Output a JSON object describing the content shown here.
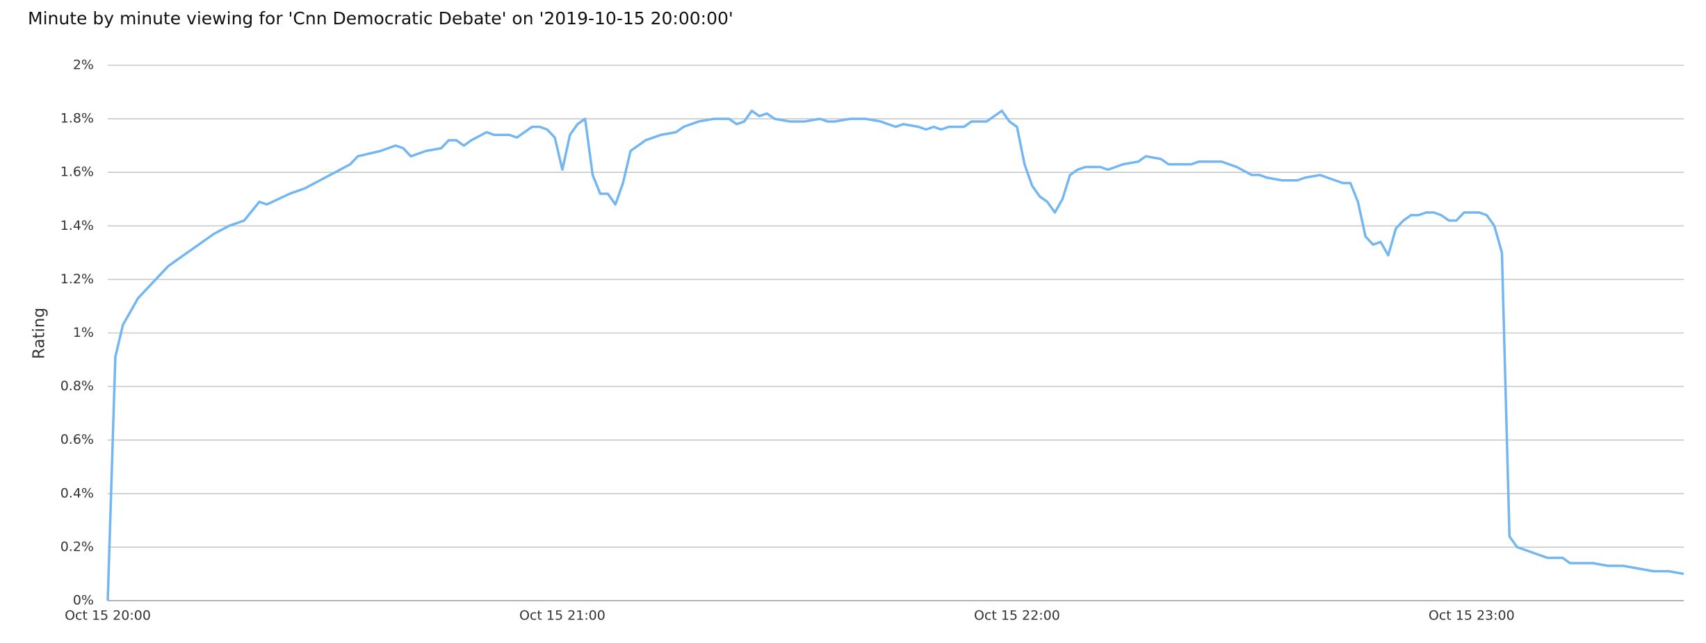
{
  "chart_data": {
    "type": "line",
    "title": "Minute by minute viewing for 'Cnn Democratic Debate' on '2019-10-15 20:00:00'",
    "y_label": "Rating",
    "color": "#72b6f2",
    "grid": true,
    "x": [
      "Oct 15 20:00",
      "Oct 15 20:01",
      "Oct 15 20:02",
      "Oct 15 20:03",
      "Oct 15 20:04",
      "Oct 15 20:06",
      "Oct 15 20:08",
      "Oct 15 20:10",
      "Oct 15 20:12",
      "Oct 15 20:14",
      "Oct 15 20:16",
      "Oct 15 20:18",
      "Oct 15 20:20",
      "Oct 15 20:21",
      "Oct 15 20:24",
      "Oct 15 20:26",
      "Oct 15 20:28",
      "Oct 15 20:30",
      "Oct 15 20:32",
      "Oct 15 20:33",
      "Oct 15 20:36",
      "Oct 15 20:38",
      "Oct 15 20:39",
      "Oct 15 20:40",
      "Oct 15 20:42",
      "Oct 15 20:44",
      "Oct 15 20:45",
      "Oct 15 20:46",
      "Oct 15 20:47",
      "Oct 15 20:48",
      "Oct 15 20:50",
      "Oct 15 20:51",
      "Oct 15 20:53",
      "Oct 15 20:54",
      "Oct 15 20:56",
      "Oct 15 20:57",
      "Oct 15 20:58",
      "Oct 15 20:59",
      "Oct 15 21:00",
      "Oct 15 21:01",
      "Oct 15 21:02",
      "Oct 15 21:03",
      "Oct 15 21:04",
      "Oct 15 21:05",
      "Oct 15 21:06",
      "Oct 15 21:07",
      "Oct 15 21:08",
      "Oct 15 21:09",
      "Oct 15 21:11",
      "Oct 15 21:13",
      "Oct 15 21:15",
      "Oct 15 21:16",
      "Oct 15 21:18",
      "Oct 15 21:20",
      "Oct 15 21:22",
      "Oct 15 21:23",
      "Oct 15 21:24",
      "Oct 15 21:25",
      "Oct 15 21:26",
      "Oct 15 21:27",
      "Oct 15 21:28",
      "Oct 15 21:30",
      "Oct 15 21:32",
      "Oct 15 21:34",
      "Oct 15 21:35",
      "Oct 15 21:36",
      "Oct 15 21:38",
      "Oct 15 21:40",
      "Oct 15 21:42",
      "Oct 15 21:44",
      "Oct 15 21:45",
      "Oct 15 21:47",
      "Oct 15 21:48",
      "Oct 15 21:49",
      "Oct 15 21:50",
      "Oct 15 21:51",
      "Oct 15 21:53",
      "Oct 15 21:54",
      "Oct 15 21:56",
      "Oct 15 21:57",
      "Oct 15 21:58",
      "Oct 15 21:59",
      "Oct 15 22:00",
      "Oct 15 22:01",
      "Oct 15 22:02",
      "Oct 15 22:03",
      "Oct 15 22:04",
      "Oct 15 22:05",
      "Oct 15 22:06",
      "Oct 15 22:07",
      "Oct 15 22:08",
      "Oct 15 22:09",
      "Oct 15 22:11",
      "Oct 15 22:12",
      "Oct 15 22:14",
      "Oct 15 22:16",
      "Oct 15 22:17",
      "Oct 15 22:19",
      "Oct 15 22:20",
      "Oct 15 22:23",
      "Oct 15 22:24",
      "Oct 15 22:26",
      "Oct 15 22:27",
      "Oct 15 22:29",
      "Oct 15 22:31",
      "Oct 15 22:32",
      "Oct 15 22:33",
      "Oct 15 22:35",
      "Oct 15 22:37",
      "Oct 15 22:38",
      "Oct 15 22:40",
      "Oct 15 22:42",
      "Oct 15 22:43",
      "Oct 15 22:44",
      "Oct 15 22:45",
      "Oct 15 22:46",
      "Oct 15 22:47",
      "Oct 15 22:48",
      "Oct 15 22:49",
      "Oct 15 22:50",
      "Oct 15 22:51",
      "Oct 15 22:52",
      "Oct 15 22:53",
      "Oct 15 22:54",
      "Oct 15 22:55",
      "Oct 15 22:56",
      "Oct 15 22:57",
      "Oct 15 22:58",
      "Oct 15 22:59",
      "Oct 15 23:01",
      "Oct 15 23:02",
      "Oct 15 23:03",
      "Oct 15 23:04",
      "Oct 15 23:05",
      "Oct 15 23:06",
      "Oct 15 23:07",
      "Oct 15 23:08",
      "Oct 15 23:09",
      "Oct 15 23:10",
      "Oct 15 23:12",
      "Oct 15 23:13",
      "Oct 15 23:15",
      "Oct 15 23:16",
      "Oct 15 23:18",
      "Oct 15 23:20",
      "Oct 15 23:22",
      "Oct 15 23:24",
      "Oct 15 23:26",
      "Oct 15 23:28"
    ],
    "values": [
      0,
      0.91,
      1.03,
      1.08,
      1.13,
      1.19,
      1.25,
      1.29,
      1.33,
      1.37,
      1.4,
      1.42,
      1.49,
      1.48,
      1.52,
      1.54,
      1.57,
      1.6,
      1.63,
      1.66,
      1.68,
      1.7,
      1.69,
      1.66,
      1.68,
      1.69,
      1.72,
      1.72,
      1.7,
      1.72,
      1.75,
      1.74,
      1.74,
      1.73,
      1.77,
      1.77,
      1.76,
      1.73,
      1.61,
      1.74,
      1.78,
      1.8,
      1.59,
      1.52,
      1.52,
      1.48,
      1.56,
      1.68,
      1.72,
      1.74,
      1.75,
      1.77,
      1.79,
      1.8,
      1.8,
      1.78,
      1.79,
      1.83,
      1.81,
      1.82,
      1.8,
      1.79,
      1.79,
      1.8,
      1.79,
      1.79,
      1.8,
      1.8,
      1.79,
      1.77,
      1.78,
      1.77,
      1.76,
      1.77,
      1.76,
      1.77,
      1.77,
      1.79,
      1.79,
      1.81,
      1.83,
      1.79,
      1.77,
      1.63,
      1.55,
      1.51,
      1.49,
      1.45,
      1.5,
      1.59,
      1.61,
      1.62,
      1.62,
      1.61,
      1.63,
      1.64,
      1.66,
      1.65,
      1.63,
      1.63,
      1.64,
      1.64,
      1.64,
      1.62,
      1.59,
      1.59,
      1.58,
      1.57,
      1.57,
      1.58,
      1.59,
      1.57,
      1.56,
      1.56,
      1.49,
      1.36,
      1.33,
      1.34,
      1.29,
      1.39,
      1.42,
      1.44,
      1.44,
      1.45,
      1.45,
      1.44,
      1.42,
      1.42,
      1.45,
      1.45,
      1.44,
      1.4,
      1.3,
      0.24,
      0.2,
      0.19,
      0.18,
      0.17,
      0.16,
      0.16,
      0.14,
      0.14,
      0.14,
      0.13,
      0.13,
      0.12,
      0.11,
      0.11,
      0.1
    ],
    "xlim": [
      "Oct 15 20:00",
      "Oct 15 23:28"
    ],
    "xticks": [
      "Oct 15 20:00",
      "Oct 15 21:00",
      "Oct 15 22:00",
      "Oct 15 23:00"
    ],
    "ylim": [
      0,
      2
    ],
    "yticks": [
      {
        "value": 0,
        "label": "0%"
      },
      {
        "value": 0.2,
        "label": "0.2%"
      },
      {
        "value": 0.4,
        "label": "0.4%"
      },
      {
        "value": 0.6,
        "label": "0.6%"
      },
      {
        "value": 0.8,
        "label": "0.8%"
      },
      {
        "value": 1,
        "label": "1%"
      },
      {
        "value": 1.2,
        "label": "1.2%"
      },
      {
        "value": 1.4,
        "label": "1.4%"
      },
      {
        "value": 1.6,
        "label": "1.6%"
      },
      {
        "value": 1.8,
        "label": "1.8%"
      },
      {
        "value": 2,
        "label": "2%"
      }
    ]
  }
}
